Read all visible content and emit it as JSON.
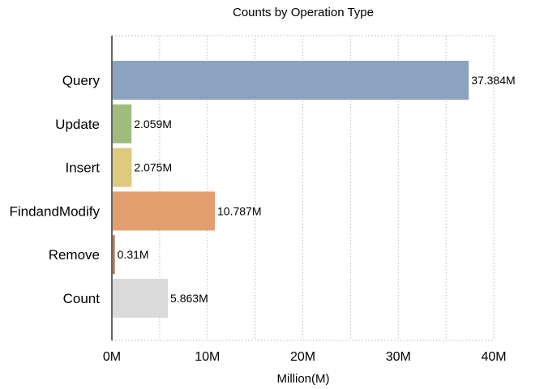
{
  "chart_data": {
    "type": "bar",
    "orientation": "horizontal",
    "title": "Counts by Operation Type",
    "xlabel": "Million(M)",
    "ylabel": "",
    "xlim": [
      0,
      40
    ],
    "x_ticks": [
      0,
      10,
      20,
      30,
      40
    ],
    "x_tick_labels": [
      "0M",
      "10M",
      "20M",
      "30M",
      "40M"
    ],
    "grid": true,
    "legend": "none",
    "categories": [
      "Query",
      "Update",
      "Insert",
      "FindandModify",
      "Remove",
      "Count"
    ],
    "values": [
      37.384,
      2.059,
      2.075,
      10.787,
      0.31,
      5.863
    ],
    "data_labels": [
      "37.384M",
      "2.059M",
      "2.075M",
      "10.787M",
      "0.31M",
      "5.863M"
    ],
    "colors": [
      "#8ca3c0",
      "#9fbc7c",
      "#dec97e",
      "#e29e6e",
      "#c07448",
      "#dadada"
    ]
  }
}
